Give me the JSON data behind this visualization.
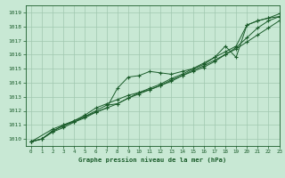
{
  "title": "Graphe pression niveau de la mer (hPa)",
  "xlim": [
    -0.5,
    23
  ],
  "ylim": [
    1009.5,
    1019.5
  ],
  "yticks": [
    1010,
    1011,
    1012,
    1013,
    1014,
    1015,
    1016,
    1017,
    1018,
    1019
  ],
  "xticks": [
    0,
    1,
    2,
    3,
    4,
    5,
    6,
    7,
    8,
    9,
    10,
    11,
    12,
    13,
    14,
    15,
    16,
    17,
    18,
    19,
    20,
    21,
    22,
    23
  ],
  "bg_color": "#c8e8d4",
  "grid_color": "#a0c8b0",
  "line_color": "#1a5c2a",
  "line1_x": [
    0,
    1,
    2,
    3,
    4,
    5,
    6,
    7,
    8,
    9,
    10,
    11,
    12,
    13,
    14,
    15,
    16,
    17,
    18,
    19,
    20,
    21,
    22,
    23
  ],
  "line1_y": [
    1009.8,
    1010.0,
    1010.5,
    1010.8,
    1011.2,
    1011.5,
    1011.9,
    1012.2,
    1013.6,
    1014.4,
    1014.5,
    1014.8,
    1014.7,
    1014.6,
    1014.8,
    1015.0,
    1015.3,
    1015.8,
    1016.6,
    1015.8,
    1018.1,
    1018.4,
    1018.6,
    1018.7
  ],
  "line2_x": [
    0,
    1,
    2,
    3,
    4,
    5,
    6,
    7,
    8,
    9,
    10,
    11,
    12,
    13,
    14,
    15,
    16,
    17,
    18,
    19,
    20,
    21,
    22,
    23
  ],
  "line2_y": [
    1009.8,
    1010.0,
    1010.5,
    1011.0,
    1011.3,
    1011.6,
    1012.0,
    1012.4,
    1012.5,
    1012.9,
    1013.2,
    1013.5,
    1013.8,
    1014.2,
    1014.5,
    1014.8,
    1015.1,
    1015.5,
    1016.0,
    1016.5,
    1017.2,
    1017.9,
    1018.4,
    1018.7
  ],
  "line3_x": [
    0,
    1,
    2,
    3,
    4,
    5,
    6,
    7,
    8,
    9,
    10,
    11,
    12,
    13,
    14,
    15,
    16,
    17,
    18,
    19,
    20,
    21,
    22,
    23
  ],
  "line3_y": [
    1009.8,
    1010.0,
    1010.6,
    1010.9,
    1011.3,
    1011.7,
    1012.2,
    1012.5,
    1012.8,
    1013.1,
    1013.3,
    1013.5,
    1013.8,
    1014.1,
    1014.5,
    1014.9,
    1015.2,
    1015.6,
    1016.0,
    1016.4,
    1016.9,
    1017.4,
    1017.9,
    1018.4
  ],
  "line4_x": [
    0,
    2,
    3,
    4,
    5,
    6,
    7,
    8,
    9,
    10,
    11,
    12,
    13,
    14,
    15,
    16,
    17,
    18,
    19,
    20,
    21,
    22,
    23
  ],
  "line4_y": [
    1009.8,
    1010.7,
    1011.0,
    1011.2,
    1011.6,
    1011.9,
    1012.2,
    1012.5,
    1012.9,
    1013.3,
    1013.6,
    1013.9,
    1014.3,
    1014.6,
    1015.0,
    1015.4,
    1015.8,
    1016.2,
    1016.6,
    1018.1,
    1018.4,
    1018.6,
    1018.9
  ]
}
